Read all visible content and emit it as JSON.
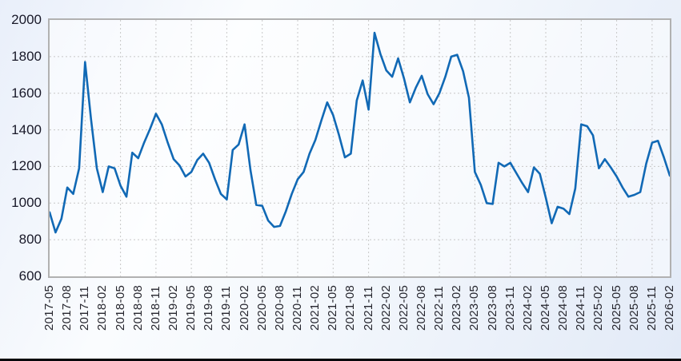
{
  "colors": {
    "line": "#1169b5",
    "grid": "#c8c8c8",
    "plot_border": "#b1b1b1",
    "axis_text": "#26262e",
    "bottom_edge_bar": "#06060a"
  },
  "chart_data": {
    "type": "line",
    "title": "",
    "xlabel": "",
    "ylabel": "",
    "ylim": [
      600,
      2000
    ],
    "y_tick_step": 200,
    "y_tick_labels": [
      "2000",
      "1800",
      "1600",
      "1400",
      "1200",
      "1000",
      "800",
      "600"
    ],
    "x_start": "2017-05",
    "x_end": "2026-02",
    "x_frequency": "monthly",
    "x_tick_every_months": 3,
    "x_gridline_every_months": 6,
    "grid_style": "dotted",
    "legend": "none",
    "line_color": "#1169b5",
    "x_tick_labels": [
      "2017-05",
      "2017-08",
      "2017-11",
      "2018-02",
      "2018-05",
      "2018-08",
      "2018-11",
      "2019-02",
      "2019-05",
      "2019-08",
      "2019-11",
      "2020-02",
      "2020-05",
      "2020-08",
      "2020-11",
      "2021-02",
      "2021-05",
      "2021-08",
      "2021-11",
      "2022-02",
      "2022-05",
      "2022-08",
      "2022-11",
      "2023-02",
      "2023-05",
      "2023-08",
      "2023-11",
      "2024-02",
      "2024-05",
      "2024-08",
      "2024-11",
      "2025-02",
      "2025-05",
      "2025-08",
      "2025-11",
      "2026-02"
    ],
    "values": [
      950,
      840,
      915,
      1085,
      1050,
      1190,
      1770,
      1460,
      1190,
      1060,
      1200,
      1190,
      1095,
      1035,
      1275,
      1245,
      1330,
      1405,
      1488,
      1430,
      1330,
      1240,
      1205,
      1145,
      1170,
      1235,
      1270,
      1220,
      1130,
      1050,
      1020,
      1290,
      1320,
      1430,
      1180,
      990,
      985,
      905,
      870,
      875,
      955,
      1050,
      1130,
      1170,
      1270,
      1345,
      1450,
      1550,
      1480,
      1370,
      1250,
      1270,
      1560,
      1670,
      1510,
      1930,
      1815,
      1725,
      1690,
      1790,
      1680,
      1550,
      1630,
      1695,
      1595,
      1540,
      1600,
      1690,
      1800,
      1810,
      1720,
      1575,
      1170,
      1100,
      1000,
      995,
      1220,
      1200,
      1220,
      1165,
      1110,
      1060,
      1195,
      1160,
      1030,
      890,
      980,
      970,
      940,
      1080,
      1430,
      1420,
      1370,
      1190,
      1240,
      1195,
      1145,
      1085,
      1035,
      1045,
      1060,
      1215,
      1330,
      1340,
      1250,
      1150
    ]
  }
}
